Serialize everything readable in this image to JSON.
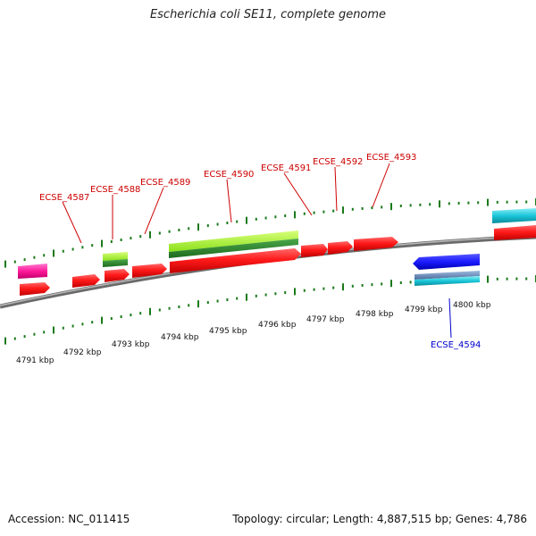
{
  "title": "Escherichia coli SE11, complete genome",
  "footer": {
    "accession": "Accession: NC_011415",
    "topology": "Topology: circular; Length: 4,887,515 bp; Genes: 4,786"
  },
  "scale": {
    "ticks": [
      "4791 kbp",
      "4792 kbp",
      "4793 kbp",
      "4794 kbp",
      "4795 kbp",
      "4796 kbp",
      "4797 kbp",
      "4798 kbp",
      "4799 kbp",
      "4800 kbp"
    ]
  },
  "genes": {
    "labels": [
      "ECSE_4587",
      "ECSE_4588",
      "ECSE_4589",
      "ECSE_4590",
      "ECSE_4591",
      "ECSE_4592",
      "ECSE_4593",
      "ECSE_4594"
    ]
  },
  "colors": {
    "forward_label": "#cc0000",
    "reverse_label": "#0000cc",
    "cds": "#ff1a1a",
    "rna_magenta": "#ff1a9a",
    "lime": "#9aff1a",
    "dark_green": "#2d8a2d",
    "blue": "#1a1aff",
    "cyan": "#1ac6d9",
    "steel": "#6a8fc0",
    "backbone": "#8a8a8a",
    "tick": "#1a7a1a"
  }
}
